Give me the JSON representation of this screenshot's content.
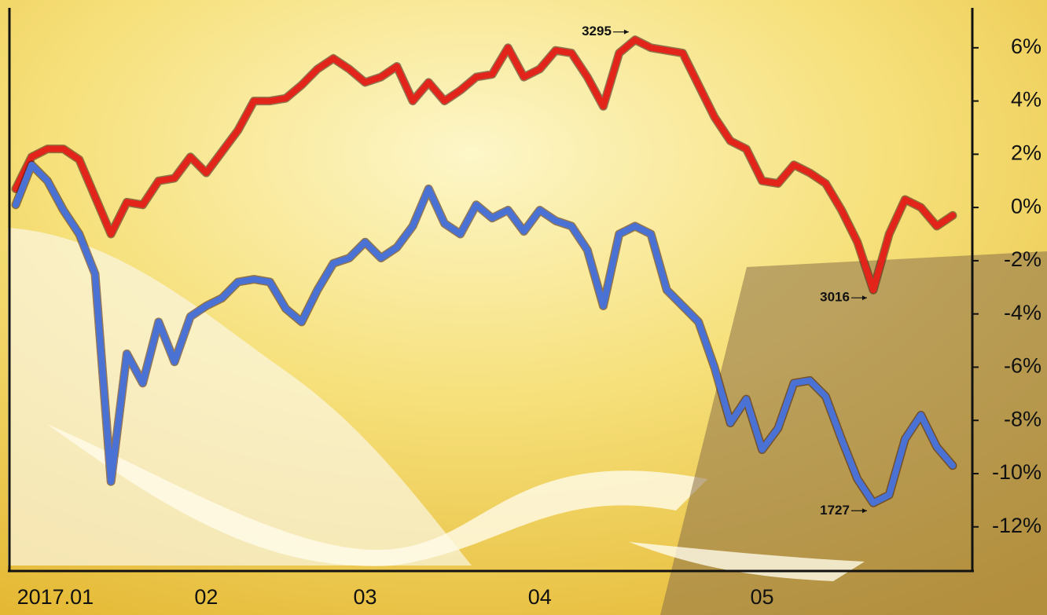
{
  "chart_data": {
    "type": "line",
    "categories": [
      null,
      null,
      "2017.01",
      null,
      null,
      null,
      null,
      null,
      null,
      null,
      null,
      null,
      "02",
      null,
      null,
      null,
      null,
      null,
      null,
      null,
      null,
      null,
      "03",
      null,
      null,
      null,
      null,
      null,
      null,
      null,
      null,
      null,
      null,
      "04",
      null,
      null,
      null,
      null,
      null,
      null,
      null,
      null,
      null,
      null,
      null,
      null,
      null,
      "05",
      null,
      null,
      null,
      null,
      null,
      null,
      null,
      null,
      null,
      null,
      null,
      null
    ],
    "series": [
      {
        "color": "#e3241b",
        "values": [
          0.7,
          1.9,
          2.2,
          2.2,
          1.8,
          0.4,
          -1.0,
          0.2,
          0.1,
          1.0,
          1.1,
          1.9,
          1.3,
          2.1,
          2.9,
          4.0,
          4.0,
          4.1,
          4.6,
          5.2,
          5.6,
          5.2,
          4.7,
          4.9,
          5.3,
          4.0,
          4.7,
          4.0,
          4.4,
          4.9,
          5.0,
          6.0,
          4.9,
          5.2,
          5.9,
          5.8,
          4.9,
          3.8,
          5.8,
          6.3,
          6.0,
          5.9,
          5.8,
          4.6,
          3.4,
          2.5,
          2.2,
          1.0,
          0.9,
          1.6,
          1.3,
          0.9,
          -0.1,
          -1.3,
          -3.1,
          -1.0,
          0.3,
          0.0,
          -0.7,
          -0.3
        ]
      },
      {
        "color": "#4a72d4",
        "values": [
          0.1,
          1.6,
          1.0,
          -0.1,
          -1.0,
          -2.5,
          -10.3,
          -5.5,
          -6.6,
          -4.3,
          -5.8,
          -4.1,
          -3.7,
          -3.4,
          -2.8,
          -2.7,
          -2.8,
          -3.8,
          -4.3,
          -3.1,
          -2.1,
          -1.9,
          -1.3,
          -1.9,
          -1.5,
          -0.7,
          0.7,
          -0.6,
          -1.0,
          0.1,
          -0.4,
          -0.1,
          -0.9,
          -0.1,
          -0.5,
          -0.7,
          -1.6,
          -3.7,
          -1.0,
          -0.7,
          -1.0,
          -3.1,
          -3.7,
          -4.3,
          -6.0,
          -8.1,
          -7.2,
          -9.1,
          -8.3,
          -6.6,
          -6.5,
          -7.1,
          -8.7,
          -10.2,
          -11.1,
          -10.8,
          -8.7,
          -7.8,
          -9.0,
          -9.7
        ]
      }
    ],
    "annotations": [
      "3295",
      "3016",
      "1727"
    ],
    "ylim": [
      -13.6,
      7.5
    ],
    "yticks": [
      {
        "value": 6,
        "label": "6%"
      },
      {
        "value": 4,
        "label": "4%"
      },
      {
        "value": 2,
        "label": "2%"
      },
      {
        "value": 0,
        "label": "0%"
      },
      {
        "value": -2,
        "label": "-2%"
      },
      {
        "value": -4,
        "label": "-4%"
      },
      {
        "value": -6,
        "label": "-6%"
      },
      {
        "value": -8,
        "label": "-8%"
      },
      {
        "value": -10,
        "label": "-10%"
      },
      {
        "value": -12,
        "label": "-12%"
      }
    ]
  }
}
